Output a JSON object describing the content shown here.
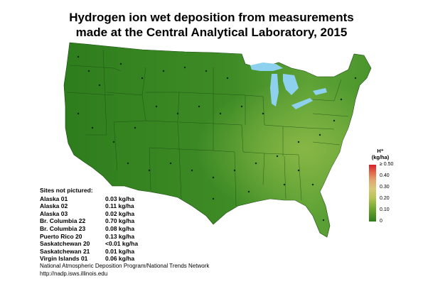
{
  "title_line1": "Hydrogen ion wet deposition from measurements",
  "title_line2": "made at the Central Analytical Laboratory, 2015",
  "sites_not_pictured": {
    "header": "Sites not pictured:",
    "rows": [
      {
        "name": "Alaska 01",
        "value": "0.03 kg/ha"
      },
      {
        "name": "Alaska 02",
        "value": "0.11 kg/ha"
      },
      {
        "name": "Alaska 03",
        "value": "0.02 kg/ha"
      },
      {
        "name": "Br. Columbia 22",
        "value": "0.70 kg/ha"
      },
      {
        "name": "Br. Columbia 23",
        "value": "0.08 kg/ha"
      },
      {
        "name": "Puerto Rico 20",
        "value": "0.13 kg/ha"
      },
      {
        "name": "Saskatchewan 20",
        "value": "<0.01 kg/ha"
      },
      {
        "name": "Saskatchewan 21",
        "value": "0.01 kg/ha"
      },
      {
        "name": "Virgin Islands 01",
        "value": "0.06 kg/ha"
      }
    ]
  },
  "legend": {
    "title_line1": "H⁺",
    "title_line2": "(kg/ha)",
    "ticks": [
      "≥ 0.50",
      "0.40",
      "0.30",
      "0.20",
      "0.10",
      "0"
    ],
    "colors": [
      "#2e7d1d",
      "#6fa52f",
      "#b7c458",
      "#d8c878",
      "#e3a870",
      "#e36a4b",
      "#d8202a"
    ]
  },
  "source_line1": "National Atmospheric Deposition Program/National Trends Network",
  "source_line2": "http://nadp.isws.illinois.edu",
  "map_colors": {
    "land_low": "#2e7d1d",
    "land_mid": "#4d9a2e",
    "land_high": "#8cb947",
    "water": "#8dd1ef",
    "borders": "#1a4a12"
  }
}
